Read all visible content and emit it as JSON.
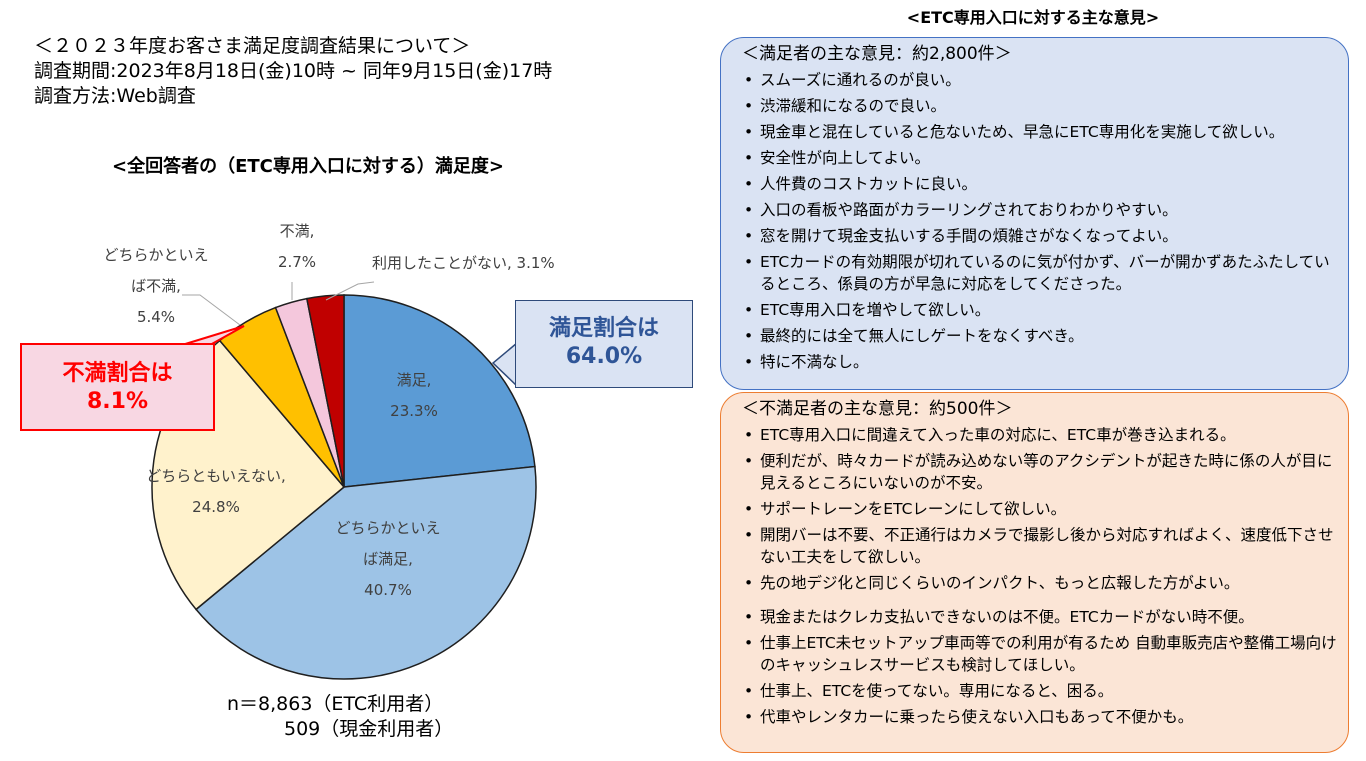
{
  "header": {
    "title": "＜２０２３年度お客さま満足度調査結果について＞",
    "period": "調査期間:2023年8月18日(金)10時 ~ 同年9月15日(金)17時",
    "method": "調査方法:Web調査"
  },
  "chart_data": {
    "type": "pie",
    "title": "<全回答者の（ETC専用入口に対する）満足度>",
    "slices": [
      {
        "label_lines": [
          "満足,"
        ],
        "value": 23.3,
        "value_label": "23.3%",
        "color": "#5b9bd5"
      },
      {
        "label_lines": [
          "どちらかといえ",
          "ば満足,"
        ],
        "value": 40.7,
        "value_label": "40.7%",
        "color": "#9dc3e6"
      },
      {
        "label_lines": [
          "どちらともいえない,"
        ],
        "value": 24.8,
        "value_label": "24.8%",
        "color": "#fff2cc"
      },
      {
        "label_lines": [
          "どちらかといえ",
          "ば不満,"
        ],
        "value": 5.4,
        "value_label": "5.4%",
        "color": "#ffc000"
      },
      {
        "label_lines": [
          "不満,"
        ],
        "value": 2.7,
        "value_label": "2.7%",
        "color": "#f4c7dc"
      },
      {
        "label_lines": [
          "利用したことがない, 3.1%"
        ],
        "value": 3.1,
        "value_label": "",
        "color": "#c00000"
      }
    ],
    "callouts": {
      "satisfied": {
        "line1": "満足割合は",
        "line2": "64.0%"
      },
      "dissatisfied": {
        "line1": "不満割合は",
        "line2": "8.1%"
      }
    },
    "sample": {
      "line1": "n＝8,863（ETC利用者）",
      "line2": "509（現金利用者）"
    }
  },
  "opinions": {
    "title": "<ETC専用入口に対する主な意見>",
    "satisfied": {
      "title": "＜満足者の主な意見：約2,800件＞",
      "items": [
        "スムーズに通れるのが良い。",
        "渋滞緩和になるので良い。",
        "現金車と混在していると危ないため、早急にETC専用化を実施して欲しい。",
        "安全性が向上してよい。",
        "人件費のコストカットに良い。",
        "入口の看板や路面がカラーリングされておりわかりやすい。",
        "窓を開けて現金支払いする手間の煩雑さがなくなってよい。",
        "ETCカードの有効期限が切れているのに気が付かず、バーが開かずあたふたしているところ、係員の方が早急に対応をしてくださった。",
        "ETC専用入口を増やして欲しい。",
        "最終的には全て無人にしゲートをなくすべき。",
        "特に不満なし。"
      ]
    },
    "dissatisfied": {
      "title": "＜不満足者の主な意見：約500件＞",
      "items": [
        "ETC専用入口に間違えて入った車の対応に、ETC車が巻き込まれる。",
        "便利だが、時々カードが読み込めない等のアクシデントが起きた時に係の人が目に見えるところにいないのが不安。",
        "サポートレーンをETCレーンにして欲しい。",
        "開閉バーは不要、不正通行はカメラで撮影し後から対応すればよく、速度低下させない工夫をして欲しい。",
        "先の地デジ化と同じくらいのインパクト、もっと広報した方がよい。",
        "現金またはクレカ支払いできないのは不便。ETCカードがない時不便。",
        "仕事上ETC未セットアップ車両等での利用が有るため 自動車販売店や整備工場向けのキャッシュレスサービスも検討してほしい。",
        "仕事上、ETCを使ってない。専用になると、困る。",
        "代車やレンタカーに乗ったら使えない入口もあって不便かも。"
      ]
    }
  }
}
